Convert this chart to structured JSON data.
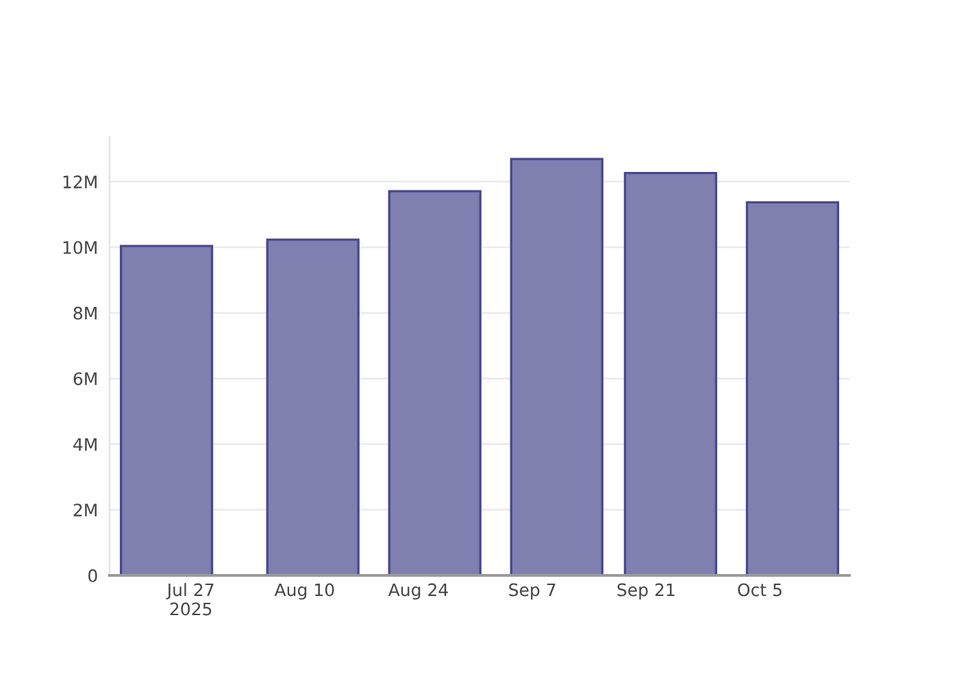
{
  "chart_data": {
    "type": "bar",
    "x": [
      "2025-07-24",
      "2025-08-11",
      "2025-08-26",
      "2025-09-10",
      "2025-09-24",
      "2025-10-09"
    ],
    "values": [
      10040000,
      10230000,
      11710000,
      12690000,
      12260000,
      11370000
    ],
    "color": "#7f7fb0",
    "xlim": [
      "2025-07-17",
      "2025-10-16"
    ],
    "xticks": [
      {
        "value": "2025-07-27",
        "label": "Jul 27\n2025"
      },
      {
        "value": "2025-08-10",
        "label": "Aug 10"
      },
      {
        "value": "2025-08-24",
        "label": "Aug 24"
      },
      {
        "value": "2025-09-07",
        "label": "Sep 7"
      },
      {
        "value": "2025-09-21",
        "label": "Sep 21"
      },
      {
        "value": "2025-10-05",
        "label": "Oct 5"
      }
    ],
    "ylim": [
      0,
      13360000
    ],
    "yticks": [
      0,
      {
        "value": 2000000,
        "label": "2M"
      },
      {
        "value": 4000000,
        "label": "4M"
      },
      {
        "value": 6000000,
        "label": "6M"
      },
      {
        "value": 8000000,
        "label": "8M"
      },
      {
        "value": 10000000,
        "label": "10M"
      },
      {
        "value": 12000000,
        "label": "12M"
      }
    ],
    "grid": "y"
  }
}
